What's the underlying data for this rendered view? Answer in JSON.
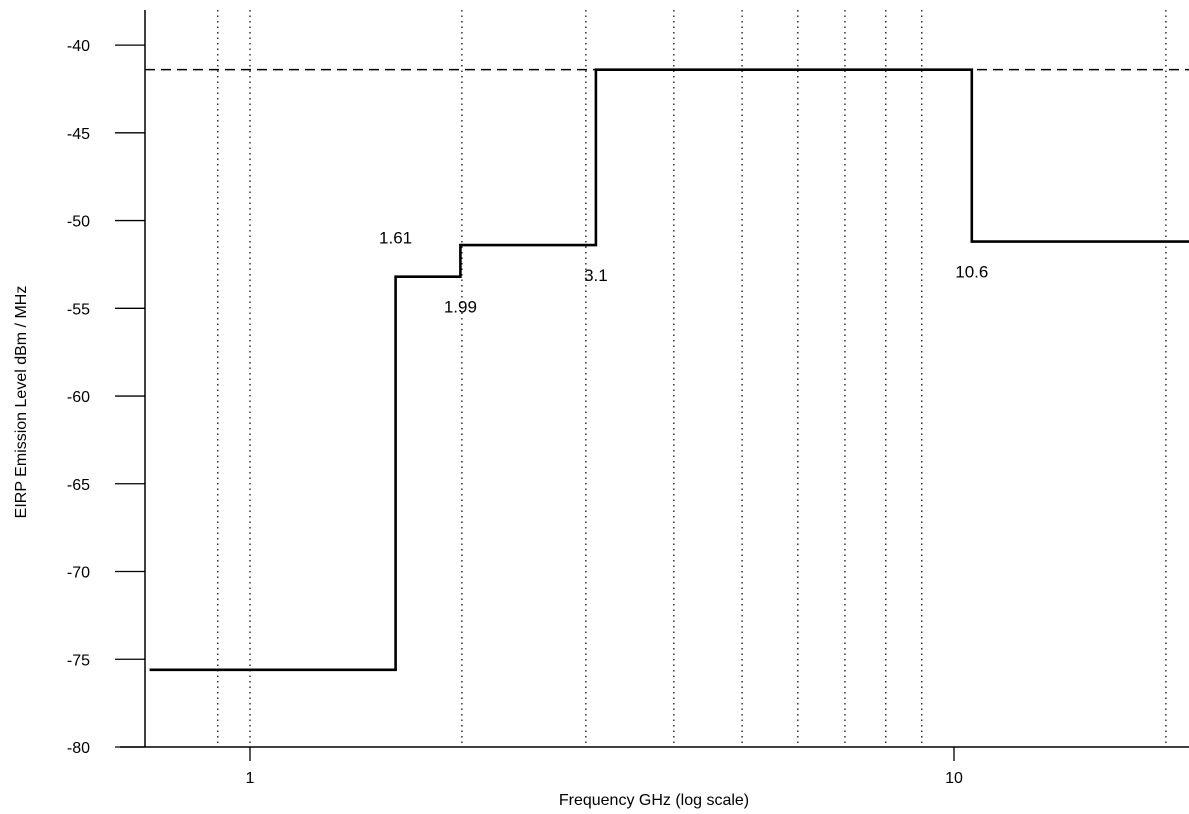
{
  "chart_data": {
    "type": "line",
    "step": true,
    "title": "",
    "xlabel": "Frequency GHz (log scale)",
    "ylabel": "EIRP Emission Level dBm / MHz",
    "x_scale": "log",
    "xlim": [
      0.72,
      23
    ],
    "ylim": [
      -80,
      -38
    ],
    "x_ticks": [
      1,
      10
    ],
    "x_tick_labels": [
      "1"
    ],
    "y_ticks": [
      -80,
      -75,
      -70,
      -65,
      -60,
      -55,
      -50,
      -45,
      -40
    ],
    "y_tick_labels": [
      "-80",
      "-75",
      "-70",
      "-65",
      "-60",
      "-55",
      "-50",
      "-45",
      "-40"
    ],
    "x_tick_labels_all": [
      "1",
      "10"
    ],
    "grid": {
      "vertical_dotted_at_GHz": [
        0.9,
        1,
        2,
        3,
        4,
        5,
        6,
        7,
        8,
        9,
        20
      ]
    },
    "series": [
      {
        "x": [
          0.72,
          1.61,
          1.61,
          1.99,
          1.99,
          3.1,
          3.1,
          10.6,
          10.6,
          23
        ],
        "y": [
          -75.6,
          -75.6,
          -53.2,
          -53.2,
          -51.4,
          -51.4,
          -41.4,
          -41.4,
          -51.2,
          -51.2
        ]
      }
    ],
    "reference_line": {
      "y": -41.4,
      "style": "dashed"
    },
    "annotations": [
      {
        "text": "1.61",
        "x": 1.61,
        "y": -53.2,
        "position": "above"
      },
      {
        "text": "1.99",
        "x": 1.99,
        "y": -53.2,
        "position": "below"
      },
      {
        "text": "3.1",
        "x": 3.1,
        "y": -51.4,
        "position": "below"
      },
      {
        "text": "10.6",
        "x": 10.6,
        "y": -51.2,
        "position": "below"
      }
    ]
  }
}
